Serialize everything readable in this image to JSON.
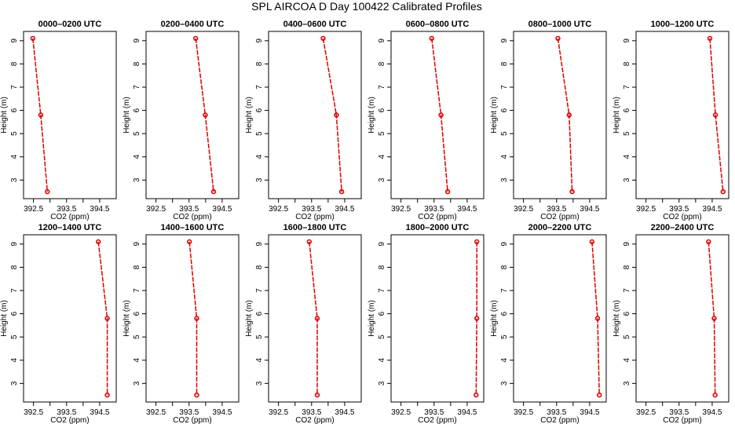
{
  "title": "SPL AIRCOA D  Day 100422  Calibrated Profiles",
  "chart_data": {
    "type": "line",
    "layout": "2 rows x 6 columns",
    "xlabel": "CO2 (ppm)",
    "ylabel": "Height (m)",
    "xlim": [
      392.2,
      395.0
    ],
    "ylim": [
      2.2,
      9.4
    ],
    "xticks": [
      392.5,
      393.5,
      394.5
    ],
    "xticks_minor": [
      393.0,
      394.0
    ],
    "yticks": [
      3,
      4,
      5,
      6,
      7,
      8,
      9
    ],
    "color": "#dd0000",
    "panels": [
      {
        "title": "0000–0200 UTC",
        "x": [
          392.48,
          392.72,
          392.92
        ],
        "y": [
          9.1,
          5.8,
          2.5
        ]
      },
      {
        "title": "0200–0400 UTC",
        "x": [
          393.7,
          393.99,
          394.24
        ],
        "y": [
          9.1,
          5.8,
          2.5
        ]
      },
      {
        "title": "0400–0600 UTC",
        "x": [
          393.85,
          394.25,
          394.41
        ],
        "y": [
          9.1,
          5.8,
          2.5
        ]
      },
      {
        "title": "0600–0800 UTC",
        "x": [
          393.43,
          393.71,
          393.91
        ],
        "y": [
          9.1,
          5.8,
          2.5
        ]
      },
      {
        "title": "0800–1000 UTC",
        "x": [
          393.54,
          393.88,
          393.97
        ],
        "y": [
          9.1,
          5.8,
          2.5
        ]
      },
      {
        "title": "1000–1200 UTC",
        "x": [
          394.43,
          394.6,
          394.83
        ],
        "y": [
          9.1,
          5.8,
          2.5
        ]
      },
      {
        "title": "1200–1400 UTC",
        "x": [
          394.46,
          394.73,
          394.73
        ],
        "y": [
          9.1,
          5.8,
          2.5
        ]
      },
      {
        "title": "1400–1600 UTC",
        "x": [
          393.51,
          393.73,
          393.73
        ],
        "y": [
          9.1,
          5.8,
          2.5
        ]
      },
      {
        "title": "1600–1800 UTC",
        "x": [
          393.43,
          393.67,
          393.67
        ],
        "y": [
          9.1,
          5.8,
          2.5
        ]
      },
      {
        "title": "1800–2000 UTC",
        "x": [
          394.79,
          394.79,
          394.77
        ],
        "y": [
          9.1,
          5.8,
          2.5
        ]
      },
      {
        "title": "2000–2200 UTC",
        "x": [
          394.57,
          394.74,
          394.79
        ],
        "y": [
          9.1,
          5.8,
          2.5
        ]
      },
      {
        "title": "2200–2400 UTC",
        "x": [
          394.39,
          394.56,
          394.59
        ],
        "y": [
          9.1,
          5.8,
          2.5
        ]
      }
    ]
  }
}
